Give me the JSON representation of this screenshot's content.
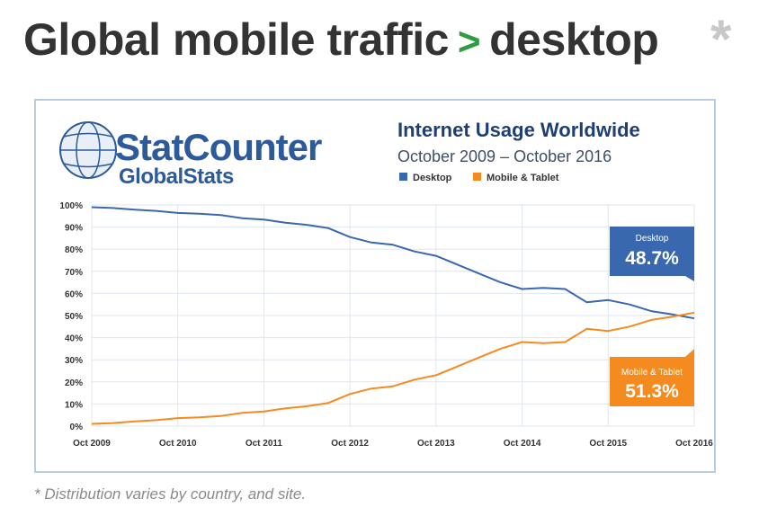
{
  "headline": {
    "part1": "Global mobile traffic",
    "separator": ">",
    "part2": "desktop",
    "asterisk": "*"
  },
  "footnote": "* Distribution varies by country, and site.",
  "logo": {
    "brand_stat": "Stat",
    "brand_counter": "Counter",
    "sub_global": "Global",
    "sub_stats": "Stats",
    "icon": "globe-icon"
  },
  "colors": {
    "desktop": "#3a68ae",
    "mobile": "#f58a1f",
    "title": "#1f3f73",
    "grid": "#dfe6ef",
    "headline_text": "#333333",
    "separator": "#2e9c3f"
  },
  "chart_data": {
    "type": "line",
    "title": "Internet Usage Worldwide",
    "subtitle": "October 2009 – October 2016",
    "xlabel": "",
    "ylabel": "",
    "ylim": [
      0,
      100
    ],
    "y_ticks": [
      "0%",
      "10%",
      "20%",
      "30%",
      "40%",
      "50%",
      "60%",
      "70%",
      "80%",
      "90%",
      "100%"
    ],
    "x_tick_labels": [
      "Oct 2009",
      "Oct 2010",
      "Oct 2011",
      "Oct 2012",
      "Oct 2013",
      "Oct 2014",
      "Oct 2015",
      "Oct 2016"
    ],
    "x_tick_years": [
      2009.75,
      2010.75,
      2011.75,
      2012.75,
      2013.75,
      2014.75,
      2015.75,
      2016.75
    ],
    "x_range": [
      2009.75,
      2016.75
    ],
    "grid": true,
    "legend_position": "top",
    "series": [
      {
        "name": "Desktop",
        "color": "#3a68ae",
        "end_label_title": "Desktop",
        "end_label_value": "48.7%",
        "points": [
          [
            2009.75,
            99.0
          ],
          [
            2010.0,
            98.6
          ],
          [
            2010.25,
            97.9
          ],
          [
            2010.5,
            97.3
          ],
          [
            2010.75,
            96.4
          ],
          [
            2011.0,
            96.0
          ],
          [
            2011.25,
            95.4
          ],
          [
            2011.5,
            94.0
          ],
          [
            2011.75,
            93.4
          ],
          [
            2012.0,
            92.0
          ],
          [
            2012.25,
            91.0
          ],
          [
            2012.5,
            89.5
          ],
          [
            2012.75,
            85.5
          ],
          [
            2013.0,
            83.0
          ],
          [
            2013.25,
            82.0
          ],
          [
            2013.5,
            79.0
          ],
          [
            2013.75,
            77.0
          ],
          [
            2014.0,
            73.0
          ],
          [
            2014.25,
            69.0
          ],
          [
            2014.5,
            65.0
          ],
          [
            2014.75,
            62.0
          ],
          [
            2015.0,
            62.5
          ],
          [
            2015.25,
            62.0
          ],
          [
            2015.5,
            56.0
          ],
          [
            2015.75,
            57.0
          ],
          [
            2016.0,
            55.0
          ],
          [
            2016.25,
            52.0
          ],
          [
            2016.5,
            50.5
          ],
          [
            2016.75,
            48.7
          ]
        ]
      },
      {
        "name": "Mobile & Tablet",
        "color": "#f58a1f",
        "end_label_title": "Mobile & Tablet",
        "end_label_value": "51.3%",
        "points": [
          [
            2009.75,
            1.0
          ],
          [
            2010.0,
            1.4
          ],
          [
            2010.25,
            2.1
          ],
          [
            2010.5,
            2.7
          ],
          [
            2010.75,
            3.6
          ],
          [
            2011.0,
            4.0
          ],
          [
            2011.25,
            4.6
          ],
          [
            2011.5,
            6.0
          ],
          [
            2011.75,
            6.6
          ],
          [
            2012.0,
            8.0
          ],
          [
            2012.25,
            9.0
          ],
          [
            2012.5,
            10.5
          ],
          [
            2012.75,
            14.5
          ],
          [
            2013.0,
            17.0
          ],
          [
            2013.25,
            18.0
          ],
          [
            2013.5,
            21.0
          ],
          [
            2013.75,
            23.0
          ],
          [
            2014.0,
            27.0
          ],
          [
            2014.25,
            31.0
          ],
          [
            2014.5,
            35.0
          ],
          [
            2014.75,
            38.0
          ],
          [
            2015.0,
            37.5
          ],
          [
            2015.25,
            38.0
          ],
          [
            2015.5,
            44.0
          ],
          [
            2015.75,
            43.0
          ],
          [
            2016.0,
            45.0
          ],
          [
            2016.25,
            48.0
          ],
          [
            2016.5,
            49.5
          ],
          [
            2016.75,
            51.3
          ]
        ]
      }
    ]
  }
}
